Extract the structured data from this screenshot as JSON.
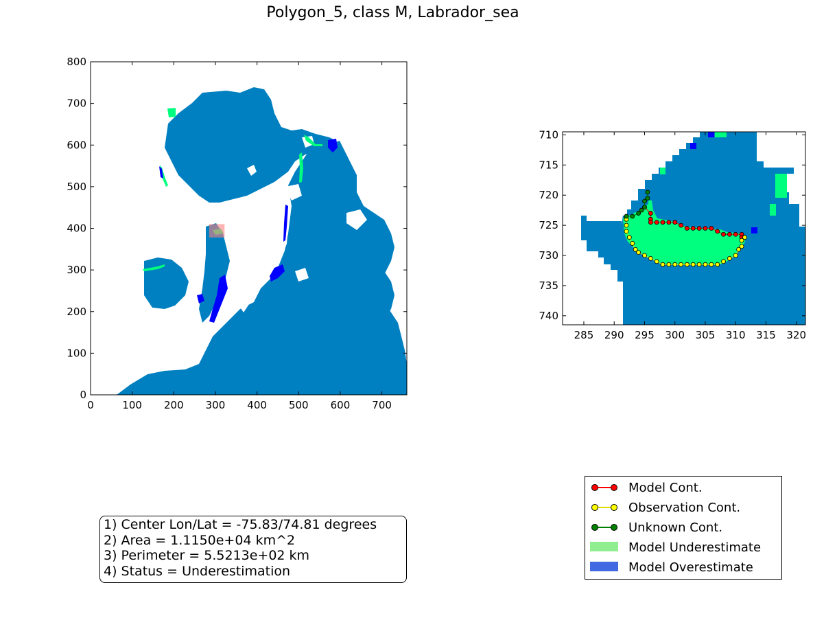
{
  "title": "Polygon_5, class M, Labrador_sea",
  "colors": {
    "ocean": "#0080c0",
    "underestimate_cell": "#00ff7f",
    "overestimate_cell": "#0000ff",
    "highlight_box": "#ff8080",
    "model_cont": "#ff0000",
    "observation_cont": "#ffff00",
    "unknown_cont": "#008000",
    "legend_underestimate": "#90ee90",
    "legend_overestimate": "#4169e1"
  },
  "info": {
    "line1": "1) Center Lon/Lat = -75.83/74.81 degrees",
    "line2": "2) Area = 1.1150e+04 km^2",
    "line3": "3) Perimeter = 5.5213e+02 km",
    "line4": "4) Status = Underestimation"
  },
  "legend": {
    "model_cont": "Model Cont.",
    "observation_cont": "Observation Cont.",
    "unknown_cont": "Unknown Cont.",
    "model_underestimate": "Model Underestimate",
    "model_overestimate": "Model Overestimate"
  },
  "chart_data": [
    {
      "type": "heatmap",
      "title": "",
      "xlabel": "",
      "ylabel": "",
      "xlim": [
        0,
        760
      ],
      "ylim": [
        0,
        800
      ],
      "xticks": [
        0,
        100,
        200,
        300,
        400,
        500,
        600,
        700
      ],
      "yticks": [
        0,
        100,
        200,
        300,
        400,
        500,
        600,
        700,
        800
      ],
      "grid": false,
      "highlight_region": {
        "x": [
          285,
          322
        ],
        "y": [
          378,
          410
        ]
      }
    },
    {
      "type": "heatmap",
      "title": "",
      "xlabel": "",
      "ylabel": "",
      "xlim": [
        281.5,
        321.5
      ],
      "ylim": [
        741.5,
        709.5
      ],
      "xticks": [
        285,
        290,
        295,
        300,
        305,
        310,
        315,
        320
      ],
      "yticks": [
        710,
        715,
        720,
        725,
        730,
        735,
        740
      ],
      "grid": false,
      "series": [
        {
          "name": "Model Cont.",
          "x": [
            295,
            296,
            296,
            296,
            297,
            298,
            299,
            300,
            301,
            302,
            303,
            304,
            305,
            306,
            307,
            308,
            309,
            310,
            311,
            311
          ],
          "y": [
            722,
            723,
            724,
            724.5,
            724.5,
            724.5,
            724.5,
            724.5,
            725,
            725.5,
            725.5,
            725.5,
            725.5,
            725.5,
            726,
            726.5,
            726.5,
            726.5,
            726.5,
            727
          ]
        },
        {
          "name": "Observation Cont.",
          "x": [
            292,
            292,
            292,
            292.5,
            293,
            293.5,
            294,
            295,
            296,
            297,
            298,
            299,
            300,
            301,
            302,
            303,
            304,
            305,
            306,
            307,
            308,
            309,
            310,
            310.5,
            311,
            311,
            311.5
          ],
          "y": [
            724,
            725,
            726,
            727,
            728,
            729,
            729.5,
            730,
            730.5,
            731,
            731.5,
            731.5,
            731.5,
            731.5,
            731.5,
            731.5,
            731.5,
            731.5,
            731.5,
            731.5,
            731,
            730.5,
            730,
            729,
            728.5,
            727.5,
            727
          ]
        },
        {
          "name": "Unknown Cont.",
          "x": [
            295.5,
            295.5,
            295,
            295,
            294.5,
            294,
            293,
            292
          ],
          "y": [
            719.5,
            720.5,
            721,
            722,
            722.5,
            723,
            723.5,
            723.5
          ]
        }
      ]
    }
  ]
}
